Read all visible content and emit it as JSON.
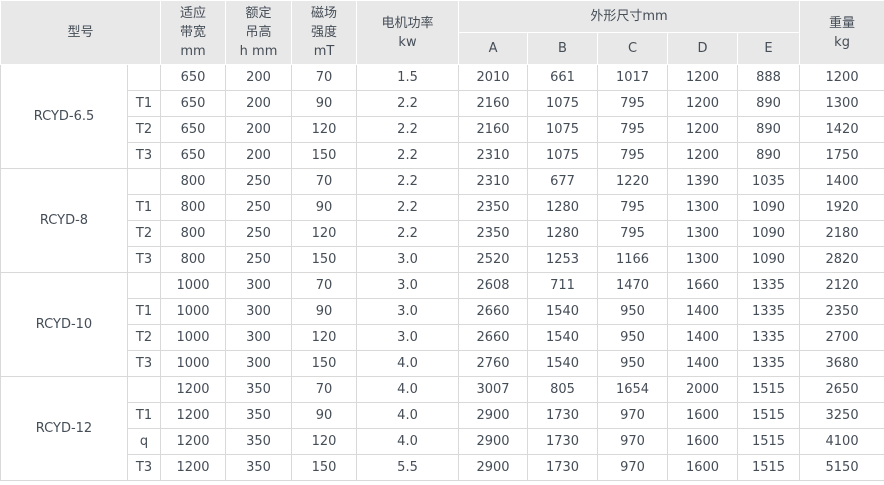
{
  "table": {
    "header": {
      "model": "型号",
      "bandwidth": [
        "适应",
        "带宽",
        "mm"
      ],
      "lift_height": [
        "额定",
        "吊高",
        "h mm"
      ],
      "field_strength": [
        "磁场",
        "强度",
        "mT"
      ],
      "motor_power": [
        "电机功率",
        "kw"
      ],
      "dimensions_title": "外形尺寸mm",
      "dimension_cols": [
        "A",
        "B",
        "C",
        "D",
        "E"
      ],
      "weight": [
        "重量",
        "kg"
      ]
    },
    "groups": [
      {
        "model": "RCYD-6.5",
        "rows": [
          [
            "",
            "650",
            "200",
            "70",
            "1.5",
            "2010",
            "661",
            "1017",
            "1200",
            "888",
            "1200"
          ],
          [
            "T1",
            "650",
            "200",
            "90",
            "2.2",
            "2160",
            "1075",
            "795",
            "1200",
            "890",
            "1300"
          ],
          [
            "T2",
            "650",
            "200",
            "120",
            "2.2",
            "2160",
            "1075",
            "795",
            "1200",
            "890",
            "1420"
          ],
          [
            "T3",
            "650",
            "200",
            "150",
            "2.2",
            "2310",
            "1075",
            "795",
            "1200",
            "890",
            "1750"
          ]
        ]
      },
      {
        "model": "RCYD-8",
        "rows": [
          [
            "",
            "800",
            "250",
            "70",
            "2.2",
            "2310",
            "677",
            "1220",
            "1390",
            "1035",
            "1400"
          ],
          [
            "T1",
            "800",
            "250",
            "90",
            "2.2",
            "2350",
            "1280",
            "795",
            "1300",
            "1090",
            "1920"
          ],
          [
            "T2",
            "800",
            "250",
            "120",
            "2.2",
            "2350",
            "1280",
            "795",
            "1300",
            "1090",
            "2180"
          ],
          [
            "T3",
            "800",
            "250",
            "150",
            "3.0",
            "2520",
            "1253",
            "1166",
            "1300",
            "1090",
            "2820"
          ]
        ]
      },
      {
        "model": "RCYD-10",
        "rows": [
          [
            "",
            "1000",
            "300",
            "70",
            "3.0",
            "2608",
            "711",
            "1470",
            "1660",
            "1335",
            "2120"
          ],
          [
            "T1",
            "1000",
            "300",
            "90",
            "3.0",
            "2660",
            "1540",
            "950",
            "1400",
            "1335",
            "2350"
          ],
          [
            "T2",
            "1000",
            "300",
            "120",
            "3.0",
            "2660",
            "1540",
            "950",
            "1400",
            "1335",
            "2700"
          ],
          [
            "T3",
            "1000",
            "300",
            "150",
            "4.0",
            "2760",
            "1540",
            "950",
            "1400",
            "1335",
            "3680"
          ]
        ]
      },
      {
        "model": "RCYD-12",
        "rows": [
          [
            "",
            "1200",
            "350",
            "70",
            "4.0",
            "3007",
            "805",
            "1654",
            "2000",
            "1515",
            "2650"
          ],
          [
            "T1",
            "1200",
            "350",
            "90",
            "4.0",
            "2900",
            "1730",
            "970",
            "1600",
            "1515",
            "3250"
          ],
          [
            "q",
            "1200",
            "350",
            "120",
            "4.0",
            "2900",
            "1730",
            "970",
            "1600",
            "1515",
            "4100"
          ],
          [
            "T3",
            "1200",
            "350",
            "150",
            "5.5",
            "2900",
            "1730",
            "970",
            "1600",
            "1515",
            "5150"
          ]
        ]
      }
    ]
  },
  "colors": {
    "header_bg": "#e8e8e8",
    "text": "#454d57",
    "border_light": "#d9d9d9",
    "border_group": "#b3b3b3"
  }
}
